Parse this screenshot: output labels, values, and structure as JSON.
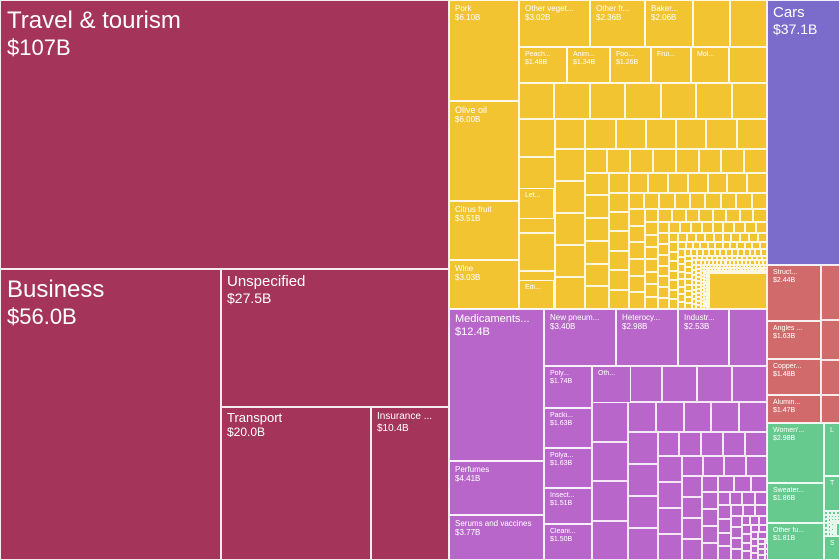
{
  "chart_data": {
    "type": "treemap",
    "colors": {
      "Services": "#A4345A",
      "Vegetable & food products": "#F2C431",
      "Chemical products": "#B866C9",
      "Transportation": "#7B6BCB",
      "Metals": "#D16B6B",
      "Textiles": "#66C98E"
    },
    "items": [
      {
        "name": "Travel & tourism",
        "value": "$107B",
        "group": "Services"
      },
      {
        "name": "Business",
        "value": "$56.0B",
        "group": "Services"
      },
      {
        "name": "Unspecified",
        "value": "$27.5B",
        "group": "Services"
      },
      {
        "name": "Transport",
        "value": "$20.0B",
        "group": "Services"
      },
      {
        "name": "Insurance ...",
        "value": "$10.4B",
        "group": "Services"
      },
      {
        "name": "Pork",
        "value": "$6.10B",
        "group": "Vegetable & food products"
      },
      {
        "name": "Olive oil",
        "value": "$6.00B",
        "group": "Vegetable & food products"
      },
      {
        "name": "Citrus fruit",
        "value": "$3.51B",
        "group": "Vegetable & food products"
      },
      {
        "name": "Wine",
        "value": "$3.03B",
        "group": "Vegetable & food products"
      },
      {
        "name": "Other veget...",
        "value": "$3.02B",
        "group": "Vegetable & food products"
      },
      {
        "name": "Other fr...",
        "value": "$2.36B",
        "group": "Vegetable & food products"
      },
      {
        "name": "Baker...",
        "value": "$2.06B",
        "group": "Vegetable & food products"
      },
      {
        "name": "Peach...",
        "value": "$1.48B",
        "group": "Vegetable & food products"
      },
      {
        "name": "Anim...",
        "value": "$1.34B",
        "group": "Vegetable & food products"
      },
      {
        "name": "Foo...",
        "value": "$1.26B",
        "group": "Vegetable & food products"
      },
      {
        "name": "Frui...",
        "value": "",
        "group": "Vegetable & food products"
      },
      {
        "name": "Mol...",
        "value": "",
        "group": "Vegetable & food products"
      },
      {
        "name": "Let...",
        "value": "",
        "group": "Vegetable & food products"
      },
      {
        "name": "Edi...",
        "value": "",
        "group": "Vegetable & food products"
      },
      {
        "name": "Medicaments...",
        "value": "$12.4B",
        "group": "Chemical products"
      },
      {
        "name": "Perfumes",
        "value": "$4.41B",
        "group": "Chemical products"
      },
      {
        "name": "Serums and vaccines",
        "value": "$3.77B",
        "group": "Chemical products"
      },
      {
        "name": "New pneum...",
        "value": "$3.40B",
        "group": "Chemical products"
      },
      {
        "name": "Heterocy...",
        "value": "$2.98B",
        "group": "Chemical products"
      },
      {
        "name": "Industr...",
        "value": "$2.53B",
        "group": "Chemical products"
      },
      {
        "name": "Poly...",
        "value": "$1.74B",
        "group": "Chemical products"
      },
      {
        "name": "Packi...",
        "value": "$1.63B",
        "group": "Chemical products"
      },
      {
        "name": "Polya...",
        "value": "$1.63B",
        "group": "Chemical products"
      },
      {
        "name": "Insect...",
        "value": "$1.51B",
        "group": "Chemical products"
      },
      {
        "name": "Cleani...",
        "value": "$1.50B",
        "group": "Chemical products"
      },
      {
        "name": "Oth...",
        "value": "",
        "group": "Chemical products"
      },
      {
        "name": "Cars",
        "value": "$37.1B",
        "group": "Transportation"
      },
      {
        "name": "Struct...",
        "value": "$2.44B",
        "group": "Metals"
      },
      {
        "name": "Angles ...",
        "value": "$1.63B",
        "group": "Metals"
      },
      {
        "name": "Copper...",
        "value": "$1.48B",
        "group": "Metals"
      },
      {
        "name": "Alumin...",
        "value": "$1.47B",
        "group": "Metals"
      },
      {
        "name": "Women'...",
        "value": "$2.98B",
        "group": "Textiles"
      },
      {
        "name": "Sweater...",
        "value": "$1.86B",
        "group": "Textiles"
      },
      {
        "name": "Other fu...",
        "value": "$1.81B",
        "group": "Textiles"
      },
      {
        "name": "Lea",
        "value": "",
        "group": "Textiles"
      },
      {
        "name": "T-s",
        "value": "",
        "group": "Textiles"
      },
      {
        "name": "Sea",
        "value": "",
        "group": "Textiles"
      }
    ]
  }
}
